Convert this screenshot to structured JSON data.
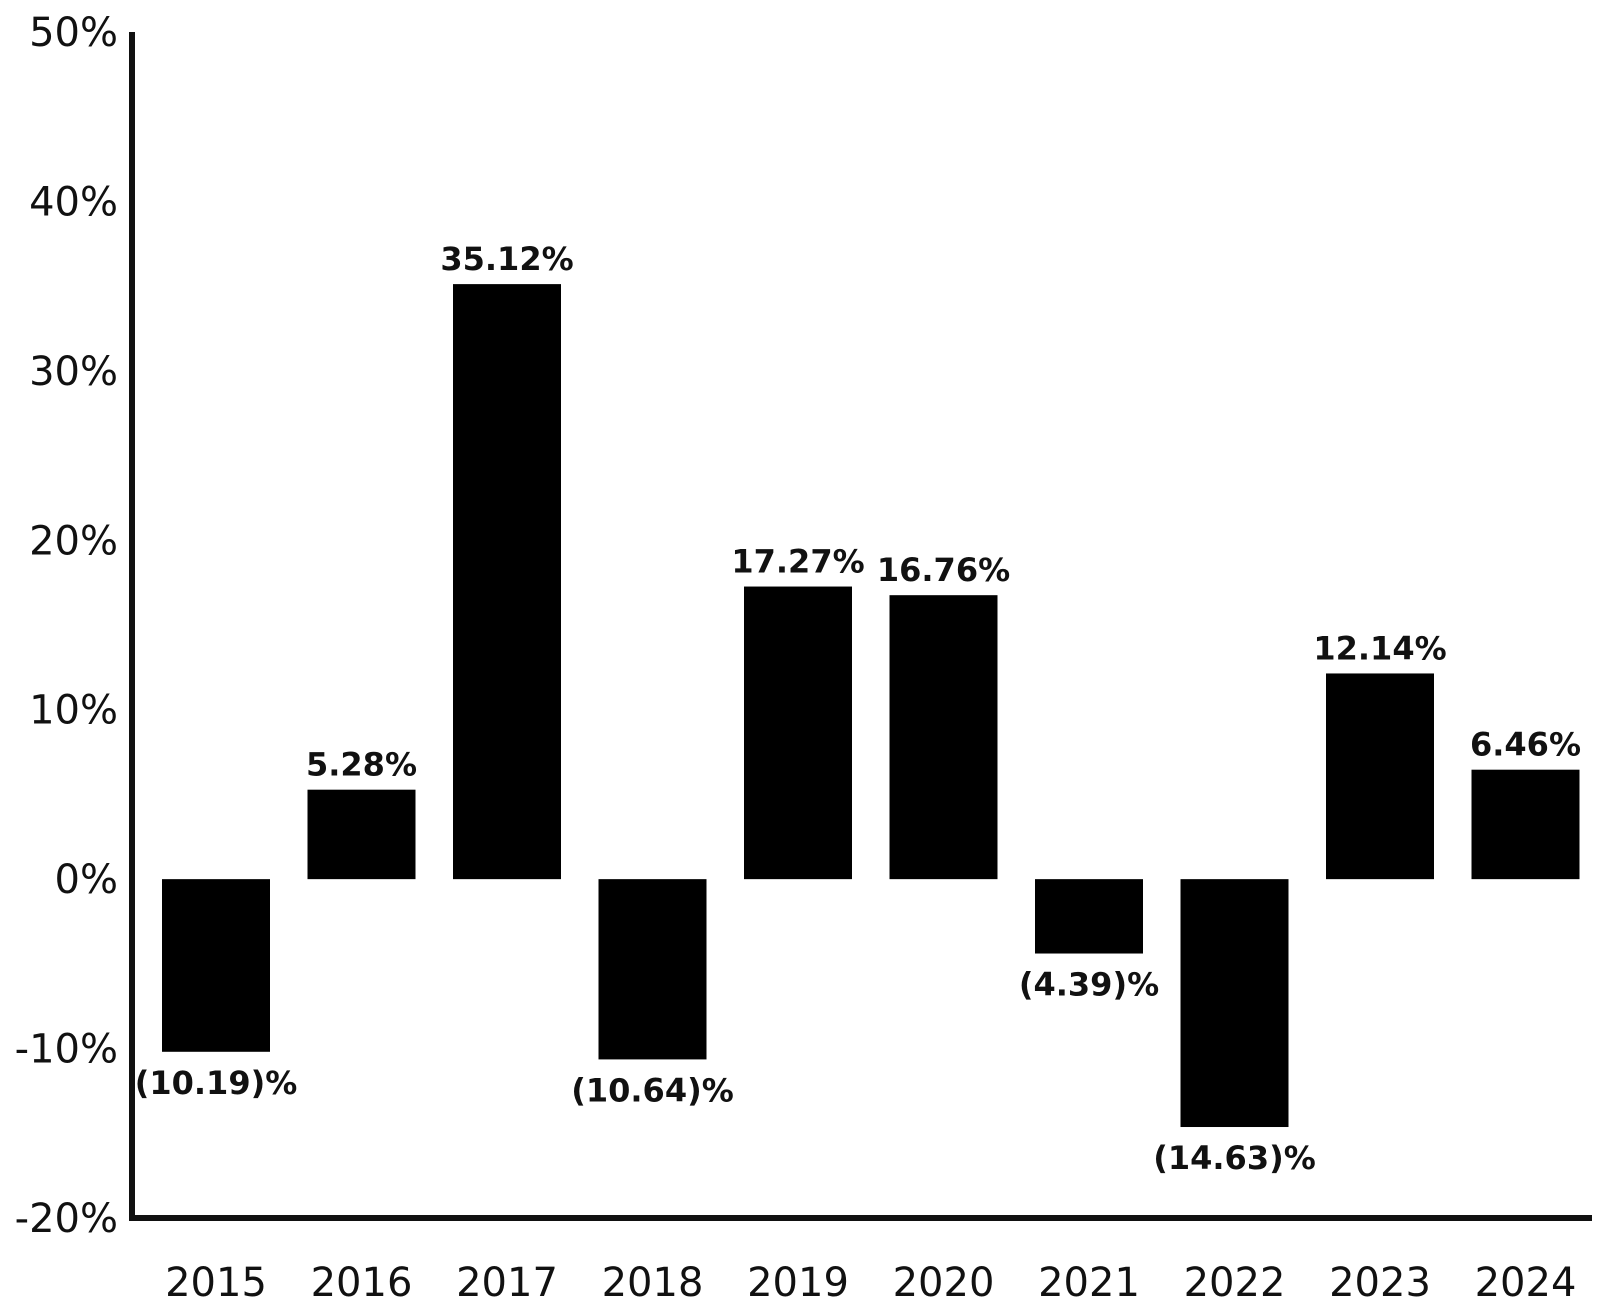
{
  "chart_data": {
    "type": "bar",
    "categories": [
      "2015",
      "2016",
      "2017",
      "2018",
      "2019",
      "2020",
      "2021",
      "2022",
      "2023",
      "2024"
    ],
    "values": [
      -10.19,
      5.28,
      35.12,
      -10.64,
      17.27,
      16.76,
      -4.39,
      -14.63,
      12.14,
      6.46
    ],
    "data_labels": [
      "(10.19)%",
      "5.28%",
      "35.12%",
      "(10.64)%",
      "17.27%",
      "16.76%",
      "(4.39)%",
      "(14.63)%",
      "12.14%",
      "6.46%"
    ],
    "ylim": [
      -20,
      50
    ],
    "yticks": [
      50,
      40,
      30,
      20,
      10,
      0,
      -10,
      -20
    ],
    "ytick_labels": [
      "50%",
      "40%",
      "30%",
      "20%",
      "10%",
      "0%",
      "-10%",
      "-20%"
    ],
    "grid": false,
    "bar_color": "#000000"
  }
}
